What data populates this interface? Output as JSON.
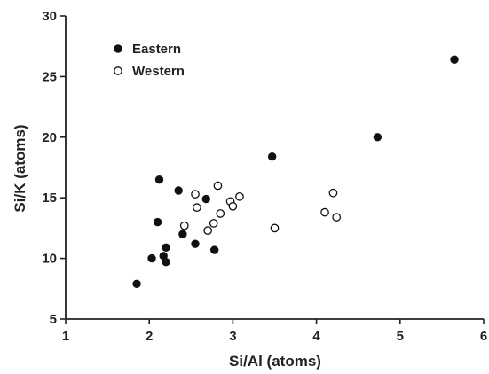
{
  "chart_data": {
    "type": "scatter",
    "title": "",
    "xlabel": "Si/Al (atoms)",
    "ylabel": "Si/K (atoms)",
    "xlim": [
      1,
      6
    ],
    "ylim": [
      5,
      30
    ],
    "x_ticks": [
      1,
      2,
      3,
      4,
      5,
      6
    ],
    "y_ticks": [
      5,
      10,
      15,
      20,
      25,
      30
    ],
    "grid": false,
    "legend_position": "top-left",
    "series": [
      {
        "name": "Eastern",
        "marker": "filled-circle",
        "color": "#111111",
        "points": [
          {
            "x": 1.85,
            "y": 7.9
          },
          {
            "x": 2.03,
            "y": 10.0
          },
          {
            "x": 2.1,
            "y": 13.0
          },
          {
            "x": 2.12,
            "y": 16.5
          },
          {
            "x": 2.17,
            "y": 10.2
          },
          {
            "x": 2.2,
            "y": 9.7
          },
          {
            "x": 2.2,
            "y": 10.9
          },
          {
            "x": 2.35,
            "y": 15.6
          },
          {
            "x": 2.4,
            "y": 12.0
          },
          {
            "x": 2.55,
            "y": 11.2
          },
          {
            "x": 2.68,
            "y": 14.9
          },
          {
            "x": 2.78,
            "y": 10.7
          },
          {
            "x": 3.47,
            "y": 18.4
          },
          {
            "x": 4.73,
            "y": 20.0
          },
          {
            "x": 5.65,
            "y": 26.4
          }
        ]
      },
      {
        "name": "Western",
        "marker": "open-circle",
        "color": "#111111",
        "points": [
          {
            "x": 2.42,
            "y": 12.7
          },
          {
            "x": 2.55,
            "y": 15.3
          },
          {
            "x": 2.57,
            "y": 14.2
          },
          {
            "x": 2.7,
            "y": 12.3
          },
          {
            "x": 2.77,
            "y": 12.9
          },
          {
            "x": 2.82,
            "y": 16.0
          },
          {
            "x": 2.85,
            "y": 13.7
          },
          {
            "x": 2.97,
            "y": 14.7
          },
          {
            "x": 3.0,
            "y": 14.3
          },
          {
            "x": 3.08,
            "y": 15.1
          },
          {
            "x": 3.5,
            "y": 12.5
          },
          {
            "x": 4.1,
            "y": 13.8
          },
          {
            "x": 4.2,
            "y": 15.4
          },
          {
            "x": 4.24,
            "y": 13.4
          }
        ]
      }
    ]
  }
}
